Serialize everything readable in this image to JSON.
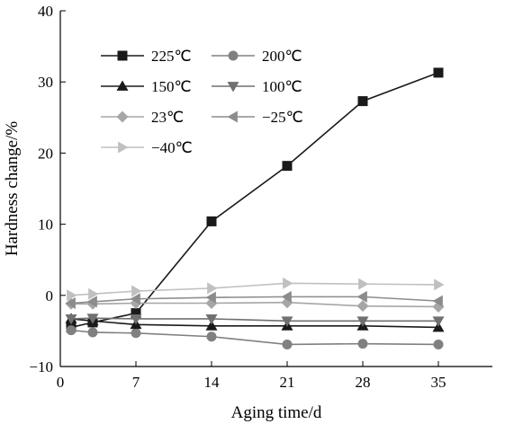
{
  "chart_data": {
    "type": "line",
    "title": "",
    "xlabel": "Aging time/d",
    "ylabel": "Hardness change/%",
    "xlim": [
      0,
      40
    ],
    "ylim": [
      -10,
      40
    ],
    "xticks": [
      0,
      7,
      14,
      21,
      28,
      35
    ],
    "yticks": [
      -10,
      0,
      10,
      20,
      30,
      40
    ],
    "grid": false,
    "legend_position": "top-left",
    "x": [
      1,
      3,
      7,
      14,
      21,
      28,
      35
    ],
    "series": [
      {
        "name": "225℃",
        "values": [
          -4.5,
          -3.8,
          -2.5,
          10.4,
          18.2,
          27.3,
          31.3
        ],
        "color": "#1a1a1a",
        "marker": "square"
      },
      {
        "name": "200℃",
        "values": [
          -4.9,
          -5.2,
          -5.3,
          -5.8,
          -6.9,
          -6.8,
          -6.9
        ],
        "color": "#808080",
        "marker": "circle"
      },
      {
        "name": "150℃",
        "values": [
          -3.3,
          -3.6,
          -4.1,
          -4.3,
          -4.3,
          -4.3,
          -4.5
        ],
        "color": "#1a1a1a",
        "marker": "triangle-up"
      },
      {
        "name": "100℃",
        "values": [
          -3.3,
          -3.2,
          -3.3,
          -3.3,
          -3.6,
          -3.6,
          -3.6
        ],
        "color": "#707070",
        "marker": "triangle-down"
      },
      {
        "name": "23℃",
        "values": [
          -1.2,
          -1.2,
          -1.1,
          -1.1,
          -1.0,
          -1.5,
          -1.6
        ],
        "color": "#a6a6a6",
        "marker": "diamond"
      },
      {
        "name": "−25℃",
        "values": [
          -1.1,
          -0.9,
          -0.5,
          -0.3,
          -0.2,
          -0.2,
          -0.8
        ],
        "color": "#8c8c8c",
        "marker": "triangle-left"
      },
      {
        "name": "−40℃",
        "values": [
          0.0,
          0.2,
          0.6,
          1.0,
          1.7,
          1.6,
          1.5
        ],
        "color": "#c0c0c0",
        "marker": "triangle-right"
      }
    ]
  }
}
